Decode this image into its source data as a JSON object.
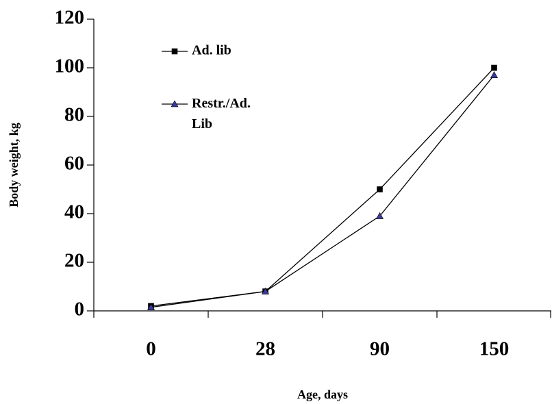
{
  "chart_data": {
    "type": "line",
    "x_label": "Age, days",
    "y_label": "Body weight, kg",
    "categories": [
      "0",
      "28",
      "90",
      "150"
    ],
    "series": [
      {
        "name": "Ad. lib",
        "color": "#000000",
        "marker": "square",
        "values": [
          2,
          8,
          50,
          100
        ]
      },
      {
        "name": "Restr./Ad. Lib",
        "color": "#3a3a9a",
        "marker": "triangle",
        "values": [
          1.5,
          8,
          39,
          97
        ]
      }
    ],
    "ylim": [
      0,
      120
    ],
    "yticks": [
      0,
      20,
      40,
      60,
      80,
      100,
      120
    ],
    "grid": false,
    "legend": "upper left"
  }
}
